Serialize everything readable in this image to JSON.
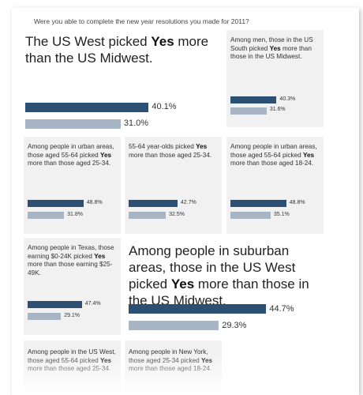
{
  "question": "Were you able to complete the new year resolutions you made for 2011?",
  "colors": {
    "yes_bar": "#2c4f74",
    "comparison_bar": "#a8b5c4"
  },
  "cards": [
    {
      "id": "card1",
      "pre": "The US West picked ",
      "bold": "Yes",
      "post": " more than the US Midwest.",
      "yes_pct": "40.1%",
      "comp_pct": "31.0%",
      "yes_value": 40.1,
      "comp_value": 31.0
    },
    {
      "id": "card2",
      "pre": "Among men, those in the US South picked ",
      "bold": "Yes",
      "post": " more than those in the US Midwest.",
      "yes_pct": "40.3%",
      "comp_pct": "31.6%",
      "yes_value": 40.3,
      "comp_value": 31.6
    },
    {
      "id": "card3",
      "pre": "Among people in urban areas, those aged 55-64 picked ",
      "bold": "Yes",
      "post": " more than those aged 25-34.",
      "yes_pct": "48.8%",
      "comp_pct": "31.8%",
      "yes_value": 48.8,
      "comp_value": 31.8
    },
    {
      "id": "card4",
      "pre": "55-64 year-olds picked ",
      "bold": "Yes",
      "post": " more than those aged 25-34.",
      "yes_pct": "42.7%",
      "comp_pct": "32.5%",
      "yes_value": 42.7,
      "comp_value": 32.5
    },
    {
      "id": "card5",
      "pre": "Among people in urban areas, those aged 55-64 picked ",
      "bold": "Yes",
      "post": " more than those aged 18-24.",
      "yes_pct": "48.8%",
      "comp_pct": "35.1%",
      "yes_value": 48.8,
      "comp_value": 35.1
    },
    {
      "id": "card6",
      "pre": "Among people in Texas, those earning $0-24K picked ",
      "bold": "Yes",
      "post": " more than those earning $25-49K.",
      "yes_pct": "47.4%",
      "comp_pct": "29.1%",
      "yes_value": 47.4,
      "comp_value": 29.1
    },
    {
      "id": "card7",
      "pre": "Among people in suburban areas, those in the US West picked ",
      "bold": "Yes",
      "post": " more than those in the US Midwest.",
      "yes_pct": "44.7%",
      "comp_pct": "29.3%",
      "yes_value": 44.7,
      "comp_value": 29.3
    },
    {
      "id": "card8",
      "pre": "Among people in the US West, those aged 55-64 picked ",
      "bold": "Yes",
      "post": " more than those aged 25-34."
    },
    {
      "id": "card9",
      "pre": "Among people in New York, those aged 25-34 picked ",
      "bold": "Yes",
      "post": " more than those aged 18-24."
    }
  ]
}
